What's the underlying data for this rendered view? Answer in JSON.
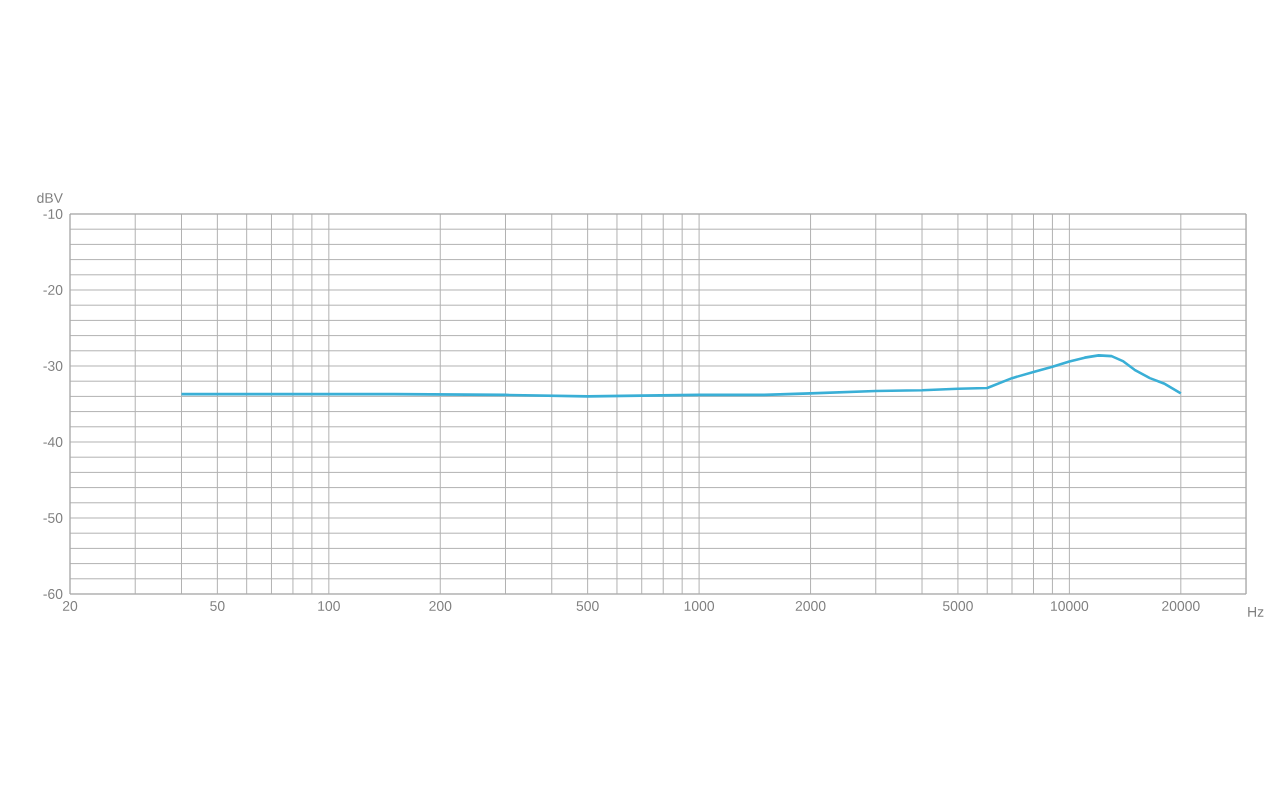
{
  "chart_data": {
    "type": "line",
    "xlabel": "Hz",
    "ylabel": "dBV",
    "log": "x",
    "grid": true,
    "marker": "none",
    "line_style": "solid",
    "xlim": [
      20,
      30000
    ],
    "ylim": [
      -60,
      -10
    ],
    "xticks": [
      20,
      {
        "value": 30,
        "label": null
      },
      {
        "value": 40,
        "label": null
      },
      50,
      {
        "value": 60,
        "label": null
      },
      {
        "value": 70,
        "label": null
      },
      {
        "value": 80,
        "label": null
      },
      {
        "value": 90,
        "label": null
      },
      100,
      200,
      {
        "value": 300,
        "label": null
      },
      {
        "value": 400,
        "label": null
      },
      500,
      {
        "value": 600,
        "label": null
      },
      {
        "value": 700,
        "label": null
      },
      {
        "value": 800,
        "label": null
      },
      {
        "value": 900,
        "label": null
      },
      1000,
      2000,
      {
        "value": 3000,
        "label": null
      },
      {
        "value": 4000,
        "label": null
      },
      5000,
      {
        "value": 6000,
        "label": null
      },
      {
        "value": 7000,
        "label": null
      },
      {
        "value": 8000,
        "label": null
      },
      {
        "value": 9000,
        "label": null
      },
      10000,
      20000,
      {
        "value": 30000,
        "label": null
      }
    ],
    "yticks": [
      -60,
      {
        "value": -58,
        "label": null
      },
      {
        "value": -56,
        "label": null
      },
      {
        "value": -54,
        "label": null
      },
      {
        "value": -52,
        "label": null
      },
      -50,
      {
        "value": -48,
        "label": null
      },
      {
        "value": -46,
        "label": null
      },
      {
        "value": -44,
        "label": null
      },
      {
        "value": -42,
        "label": null
      },
      -40,
      {
        "value": -38,
        "label": null
      },
      {
        "value": -36,
        "label": null
      },
      {
        "value": -34,
        "label": null
      },
      {
        "value": -32,
        "label": null
      },
      -30,
      {
        "value": -28,
        "label": null
      },
      {
        "value": -26,
        "label": null
      },
      {
        "value": -24,
        "label": null
      },
      {
        "value": -22,
        "label": null
      },
      -20,
      {
        "value": -18,
        "label": null
      },
      {
        "value": -16,
        "label": null
      },
      {
        "value": -14,
        "label": null
      },
      {
        "value": -12,
        "label": null
      },
      -10
    ],
    "series": [
      {
        "color": "#3aafd6",
        "x": [
          40,
          60,
          100,
          150,
          300,
          500,
          700,
          1000,
          1500,
          2000,
          3000,
          4000,
          5000,
          6000,
          7000,
          8000,
          9000,
          10000,
          11000,
          12000,
          13000,
          14000,
          15000,
          16500,
          18000,
          20000
        ],
        "values": [
          -33.7,
          -33.7,
          -33.7,
          -33.7,
          -33.8,
          -34.0,
          -33.9,
          -33.8,
          -33.8,
          -33.6,
          -33.3,
          -33.2,
          -33.0,
          -32.9,
          -31.6,
          -30.8,
          -30.1,
          -29.4,
          -28.9,
          -28.6,
          -28.7,
          -29.4,
          -30.5,
          -31.6,
          -32.3,
          -33.6
        ]
      }
    ]
  }
}
